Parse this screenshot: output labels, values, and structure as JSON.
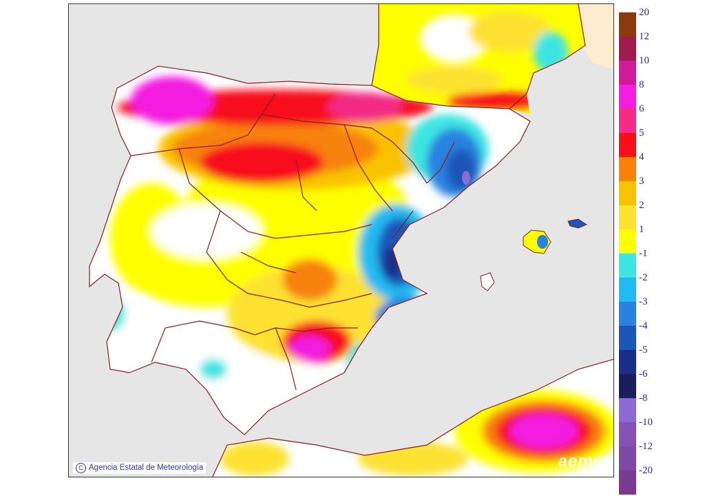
{
  "map": {
    "credit_text": "Agencia Estatal de Meteorología",
    "logo_text": "aemet",
    "colors": {
      "sea": "#e6e6e6",
      "border": "#8b1a1a"
    }
  },
  "legend": {
    "positive": [
      {
        "label": "20",
        "color": "#8b3a0e"
      },
      {
        "label": "12",
        "color": "#a01c4c"
      },
      {
        "label": "10",
        "color": "#d1199b"
      },
      {
        "label": "8",
        "color": "#f31ee0"
      },
      {
        "label": "6",
        "color": "#f32c84"
      },
      {
        "label": "5",
        "color": "#f70f1a"
      },
      {
        "label": "4",
        "color": "#f7820a"
      },
      {
        "label": "3",
        "color": "#f9c200"
      },
      {
        "label": "2",
        "color": "#fde233"
      },
      {
        "label": "1",
        "color": "#ffff00"
      }
    ],
    "negative": [
      {
        "label": "-1",
        "color": "#3ee5e2"
      },
      {
        "label": "-2",
        "color": "#20bbf2"
      },
      {
        "label": "-3",
        "color": "#2a82e0"
      },
      {
        "label": "-4",
        "color": "#1b57b8"
      },
      {
        "label": "-5",
        "color": "#1a2d87"
      },
      {
        "label": "-6",
        "color": "#1b1e5c"
      },
      {
        "label": "-8",
        "color": "#8c69d4"
      },
      {
        "label": "-10",
        "color": "#8752b6"
      },
      {
        "label": "-12",
        "color": "#7c4aa4"
      },
      {
        "label": "-20",
        "color": "#7a3a90"
      }
    ]
  }
}
